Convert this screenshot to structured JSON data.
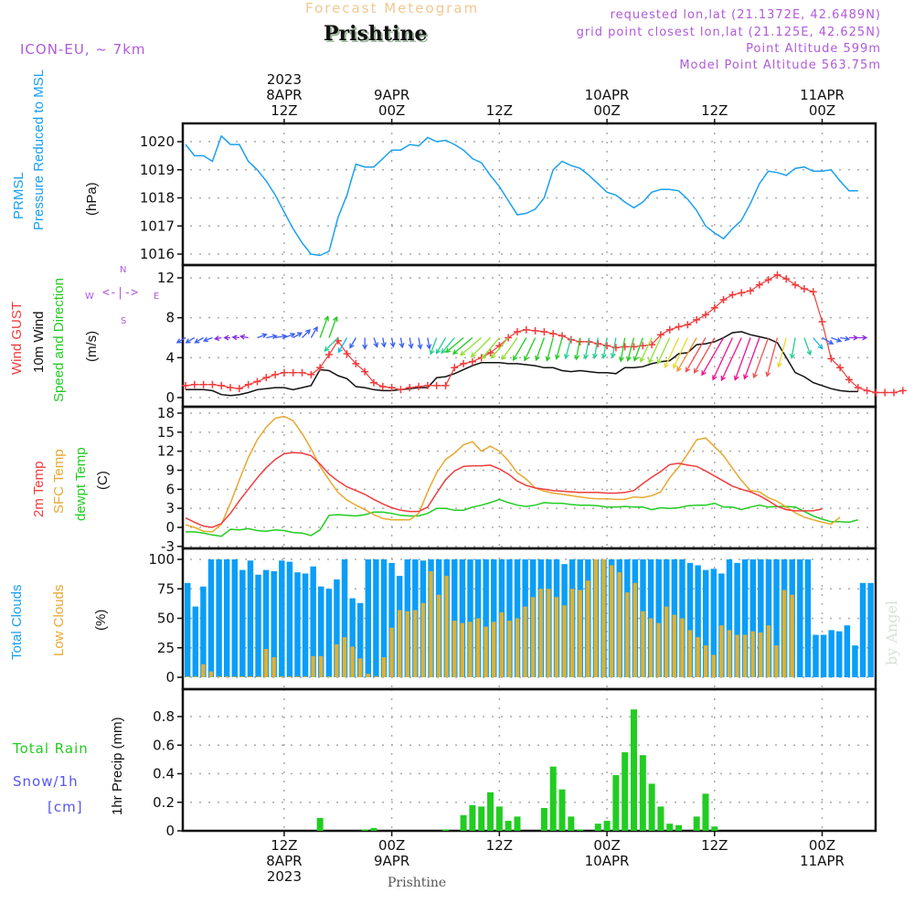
{
  "header": {
    "title": "Forecast Meteogram",
    "station": "Prishtine",
    "model": "ICON-EU, ~ 7km",
    "requested": "requested lon,lat (21.1372E, 42.6489N)",
    "grid_point": "grid point closest lon,lat (21.125E, 42.625N)",
    "point_altitude": "Point Altitude 599m",
    "model_altitude": "Model Point Altitude 563.75m"
  },
  "footer": {
    "station": "Prishtine",
    "credit": "by Angel"
  },
  "labels": {
    "prmsl": "PRMSL",
    "pressure": "Pressure Reduced to MSL",
    "hpa": "(hPa)",
    "wind_gust_a": "Wind ",
    "wind_gust_b": "GUST",
    "wind10m": "10m Wind",
    "speed_dir": "Speed and Direction",
    "ms": "(m/s)",
    "compass_n": "N",
    "compass_s": "S",
    "compass_w": "W",
    "compass_e": "E",
    "temp2m": "2m Temp",
    "sfc_temp": "SFC Temp",
    "dewpt": "dewpt Temp",
    "c": "(C)",
    "total_clouds": "Total Clouds",
    "low_clouds": "Low Clouds",
    "pct": "(%)",
    "total_rain": "Total   Rain",
    "snow": "Snow/1h",
    "cm": "[cm]",
    "precip": "1hr Precip (mm)"
  },
  "colors": {
    "pressure": "#1aa0f0",
    "gust": "#f03c3c",
    "wind": "#111111",
    "temp2m": "#f03c3c",
    "sfc": "#e8a830",
    "dewpt": "#22cc22",
    "total_clouds": "#0a9ef8",
    "low_clouds": "#e0b030",
    "precip": "#22cc22",
    "purple": "#b05ad8",
    "snow": "#5555ee"
  },
  "chart_data": {
    "type": "meteogram",
    "x_start": "2023-04-08 01Z",
    "x_step_hours": 1,
    "top_ticks": [
      {
        "l1": "2023",
        "l2": "8APR",
        "l3": "12Z",
        "hour": 11
      },
      {
        "l1": "",
        "l2": "9APR",
        "l3": "00Z",
        "hour": 23
      },
      {
        "l1": "",
        "l2": "",
        "l3": "12Z",
        "hour": 35
      },
      {
        "l1": "",
        "l2": "10APR",
        "l3": "00Z",
        "hour": 47
      },
      {
        "l1": "",
        "l2": "",
        "l3": "12Z",
        "hour": 59
      },
      {
        "l1": "",
        "l2": "11APR",
        "l3": "00Z",
        "hour": 71
      }
    ],
    "bottom_ticks": [
      {
        "l1": "12Z",
        "l2": "8APR",
        "l3": "2023",
        "hour": 11
      },
      {
        "l1": "00Z",
        "l2": "9APR",
        "l3": "",
        "hour": 23
      },
      {
        "l1": "12Z",
        "l2": "",
        "l3": "",
        "hour": 35
      },
      {
        "l1": "00Z",
        "l2": "10APR",
        "l3": "",
        "hour": 47
      },
      {
        "l1": "12Z",
        "l2": "",
        "l3": "",
        "hour": 59
      },
      {
        "l1": "00Z",
        "l2": "11APR",
        "l3": "",
        "hour": 71
      }
    ],
    "pressure": {
      "ylabel": "hPa",
      "ylim": [
        1015.8,
        1020.6
      ],
      "yticks": [
        1016,
        1017,
        1018,
        1019,
        1020
      ],
      "values": [
        1019.9,
        1019.5,
        1019.5,
        1019.3,
        1020.2,
        1019.9,
        1019.9,
        1019.3,
        1019.0,
        1018.6,
        1018.1,
        1017.5,
        1016.9,
        1016.4,
        1016.0,
        1015.95,
        1016.1,
        1017.3,
        1018.1,
        1019.2,
        1019.1,
        1019.1,
        1019.4,
        1019.7,
        1019.7,
        1019.9,
        1019.85,
        1020.15,
        1020.0,
        1020.05,
        1019.9,
        1019.7,
        1019.4,
        1019.25,
        1018.8,
        1018.4,
        1017.9,
        1017.4,
        1017.45,
        1017.6,
        1018.0,
        1019.0,
        1019.3,
        1019.15,
        1019.05,
        1018.8,
        1018.5,
        1018.2,
        1018.1,
        1017.85,
        1017.65,
        1017.85,
        1018.2,
        1018.3,
        1018.3,
        1018.25,
        1017.95,
        1017.55,
        1017.0,
        1016.75,
        1016.55,
        1016.9,
        1017.2,
        1017.8,
        1018.5,
        1018.95,
        1018.9,
        1018.8,
        1019.05,
        1019.1,
        1018.95,
        1018.95,
        1019.0,
        1018.6,
        1018.25,
        1018.25
      ]
    },
    "wind": {
      "ylabel": "m/s",
      "ylim": [
        -0.5,
        13
      ],
      "yticks": [
        0,
        4,
        8,
        12
      ],
      "gust": [
        1.2,
        1.3,
        1.3,
        1.3,
        1.2,
        1.0,
        0.9,
        1.3,
        1.6,
        2.0,
        2.3,
        2.5,
        2.5,
        2.5,
        2.3,
        3.0,
        4.3,
        5.7,
        4.4,
        3.4,
        2.6,
        1.5,
        1.1,
        1.0,
        0.8,
        1.0,
        1.1,
        1.2,
        1.2,
        1.2,
        3.0,
        3.4,
        3.6,
        4.0,
        4.5,
        5.2,
        6.0,
        6.6,
        6.8,
        6.7,
        6.6,
        6.4,
        6.2,
        5.8,
        5.6,
        5.6,
        5.4,
        5.2,
        5.0,
        5.1,
        5.1,
        5.2,
        5.3,
        6.3,
        6.8,
        7.1,
        7.3,
        7.8,
        8.3,
        9.0,
        9.8,
        10.3,
        10.5,
        10.7,
        11.3,
        11.8,
        12.3,
        11.9,
        11.3,
        10.9,
        10.6,
        7.6,
        3.9,
        3.0,
        1.8,
        1.0,
        0.7,
        0.5,
        0.5,
        0.5,
        0.7
      ],
      "speed": [
        0.8,
        0.8,
        0.8,
        0.7,
        0.3,
        0.2,
        0.3,
        0.5,
        0.8,
        0.9,
        1.0,
        1.0,
        0.8,
        1.0,
        1.2,
        2.8,
        2.7,
        2.2,
        1.9,
        1.1,
        1.0,
        0.8,
        0.7,
        0.7,
        0.8,
        0.9,
        1.0,
        1.0,
        2.0,
        2.1,
        2.4,
        2.8,
        3.2,
        3.5,
        3.5,
        3.5,
        3.4,
        3.4,
        3.3,
        3.2,
        3.0,
        3.0,
        2.7,
        2.6,
        2.7,
        2.6,
        2.5,
        2.5,
        2.4,
        3.0,
        3.0,
        3.1,
        3.4,
        3.6,
        3.7,
        4.4,
        4.5,
        5.3,
        5.4,
        5.6,
        6.0,
        6.5,
        6.6,
        6.3,
        6.1,
        5.9,
        5.5,
        4.0,
        2.5,
        2.1,
        1.5,
        1.2,
        0.9,
        0.7,
        0.6,
        0.6
      ],
      "direction_deg": [
        60,
        60,
        60,
        70,
        80,
        90,
        95,
        100,
        250,
        260,
        260,
        250,
        240,
        225,
        210,
        200,
        200,
        45,
        30,
        30,
        0,
        340,
        350,
        350,
        350,
        350,
        350,
        350,
        20,
        30,
        40,
        50,
        50,
        50,
        45,
        40,
        40,
        35,
        30,
        25,
        20,
        15,
        15,
        15,
        10,
        10,
        10,
        10,
        10,
        10,
        15,
        20,
        25,
        25,
        25,
        25,
        25,
        30,
        30,
        30,
        30,
        25,
        25,
        20,
        20,
        20,
        15,
        15,
        10,
        340,
        320,
        300,
        290,
        280,
        270,
        270
      ],
      "arrow_color_scale": [
        "#8a2be2",
        "#3a5ff0",
        "#19b7e0",
        "#20d090",
        "#22cc22",
        "#90e030",
        "#e8d830",
        "#f09030",
        "#f05050",
        "#f01090"
      ]
    },
    "temperature": {
      "ylabel": "C",
      "ylim": [
        -3,
        18
      ],
      "yticks": [
        -3,
        0,
        3,
        6,
        9,
        12,
        15,
        18
      ],
      "temp2m": [
        1.5,
        0.8,
        0.2,
        0.0,
        0.6,
        2.2,
        4.2,
        6.0,
        7.8,
        9.4,
        10.7,
        11.6,
        11.8,
        11.7,
        11.3,
        10.0,
        8.4,
        7.3,
        6.4,
        5.8,
        5.2,
        4.4,
        3.7,
        3.1,
        2.7,
        2.5,
        2.5,
        3.2,
        5.4,
        7.5,
        8.9,
        9.6,
        9.7,
        9.7,
        9.8,
        9.2,
        8.4,
        7.3,
        6.6,
        6.2,
        6.0,
        5.8,
        5.7,
        5.6,
        5.5,
        5.5,
        5.5,
        5.4,
        5.4,
        5.5,
        5.8,
        6.9,
        7.9,
        8.8,
        9.9,
        10.1,
        9.8,
        9.6,
        8.9,
        8.1,
        7.3,
        6.5,
        6.0,
        5.6,
        5.0,
        4.2,
        3.3,
        2.8,
        2.6,
        2.6,
        2.6,
        2.9
      ],
      "sfc": [
        0.4,
        0.0,
        -0.6,
        -0.7,
        0.5,
        3.8,
        7.5,
        11.0,
        13.8,
        15.8,
        17.2,
        17.5,
        16.8,
        14.8,
        12.4,
        9.6,
        7.5,
        5.5,
        4.3,
        3.5,
        2.8,
        2.0,
        1.4,
        1.2,
        1.2,
        1.2,
        2.2,
        5.6,
        8.6,
        10.7,
        11.7,
        13.0,
        13.5,
        12.0,
        12.8,
        12.0,
        10.5,
        8.6,
        7.6,
        6.2,
        5.7,
        5.4,
        5.2,
        5.0,
        4.8,
        4.6,
        4.5,
        4.5,
        4.4,
        4.4,
        4.8,
        4.7,
        5.0,
        5.6,
        7.8,
        9.5,
        11.6,
        13.8,
        14.1,
        12.7,
        11.3,
        9.3,
        7.4,
        5.8,
        5.6,
        4.7,
        4.1,
        3.2,
        2.3,
        1.6,
        1.2,
        0.8,
        0.5,
        1.6
      ],
      "dewpt": [
        -0.7,
        -0.7,
        -0.9,
        -1.2,
        -1.4,
        -0.3,
        -0.4,
        -0.2,
        -0.5,
        -0.6,
        -0.4,
        -0.5,
        -0.8,
        -0.9,
        -1.3,
        -0.4,
        1.9,
        2.0,
        1.9,
        1.8,
        2.0,
        2.4,
        2.4,
        2.2,
        1.9,
        1.8,
        1.8,
        2.2,
        3.0,
        3.0,
        2.7,
        2.7,
        3.2,
        3.5,
        3.9,
        4.4,
        3.9,
        3.5,
        3.3,
        3.5,
        3.9,
        3.8,
        3.8,
        3.6,
        3.5,
        3.5,
        3.4,
        3.2,
        3.2,
        3.3,
        3.2,
        3.2,
        2.8,
        3.1,
        3.0,
        3.1,
        3.4,
        3.5,
        3.5,
        3.8,
        3.2,
        3.2,
        2.8,
        3.2,
        3.5,
        3.2,
        3.3,
        3.3,
        3.2,
        2.5,
        1.8,
        1.3,
        0.9,
        0.9,
        0.8,
        1.2
      ]
    },
    "clouds": {
      "ylabel": "%",
      "ylim": [
        -5,
        105
      ],
      "yticks": [
        0,
        25,
        50,
        75,
        100
      ],
      "total": [
        80,
        60,
        77,
        100,
        100,
        100,
        100,
        91,
        99,
        87,
        91,
        90,
        99,
        98,
        89,
        88,
        94,
        77,
        75,
        83,
        100,
        67,
        63,
        100,
        100,
        100,
        97,
        86,
        100,
        100,
        99,
        100,
        100,
        100,
        100,
        100,
        100,
        100,
        100,
        100,
        100,
        100,
        100,
        100,
        100,
        100,
        100,
        100,
        96,
        100,
        100,
        100,
        100,
        100,
        100,
        100,
        100,
        100,
        100,
        100,
        100,
        100,
        100,
        100,
        97,
        95,
        91,
        92,
        88,
        100,
        97,
        100,
        100,
        100,
        100,
        100,
        100,
        100,
        100,
        100,
        36,
        36,
        40,
        39,
        44,
        27,
        80,
        80
      ],
      "low": [
        0,
        0,
        11,
        5,
        0,
        0,
        0,
        0,
        0,
        0,
        24,
        17,
        0,
        0,
        0,
        0,
        18,
        18,
        0,
        28,
        34,
        26,
        16,
        3,
        1,
        17,
        42,
        57,
        56,
        57,
        63,
        90,
        70,
        86,
        48,
        46,
        47,
        50,
        43,
        47,
        55,
        48,
        50,
        60,
        68,
        75,
        75,
        68,
        61,
        75,
        74,
        82,
        100,
        100,
        95,
        89,
        72,
        80,
        56,
        50,
        46,
        60,
        53,
        50,
        40,
        34,
        27,
        19,
        44,
        40,
        36,
        36,
        39,
        38,
        44,
        27,
        74,
        70
      ]
    },
    "precip": {
      "ylabel": "mm",
      "ylim": [
        0,
        0.95
      ],
      "yticks": [
        0,
        0.2,
        0.4,
        0.6,
        0.8
      ],
      "values": [
        0,
        0,
        0,
        0,
        0,
        0,
        0,
        0,
        0,
        0,
        0,
        0,
        0,
        0,
        0,
        0.09,
        0,
        0,
        0,
        0,
        0.01,
        0.02,
        0,
        0,
        0,
        0,
        0,
        0,
        0,
        0.01,
        0,
        0.11,
        0.18,
        0.17,
        0.27,
        0.17,
        0.07,
        0.1,
        0,
        0,
        0.16,
        0.45,
        0.29,
        0.1,
        0.01,
        0,
        0.05,
        0.07,
        0.39,
        0.55,
        0.85,
        0.53,
        0.33,
        0.17,
        0.05,
        0.04,
        0,
        0.1,
        0.26,
        0.03,
        0,
        0,
        0,
        0,
        0,
        0,
        0,
        0,
        0,
        0,
        0,
        0,
        0,
        0,
        0,
        0
      ],
      "snow": []
    }
  }
}
